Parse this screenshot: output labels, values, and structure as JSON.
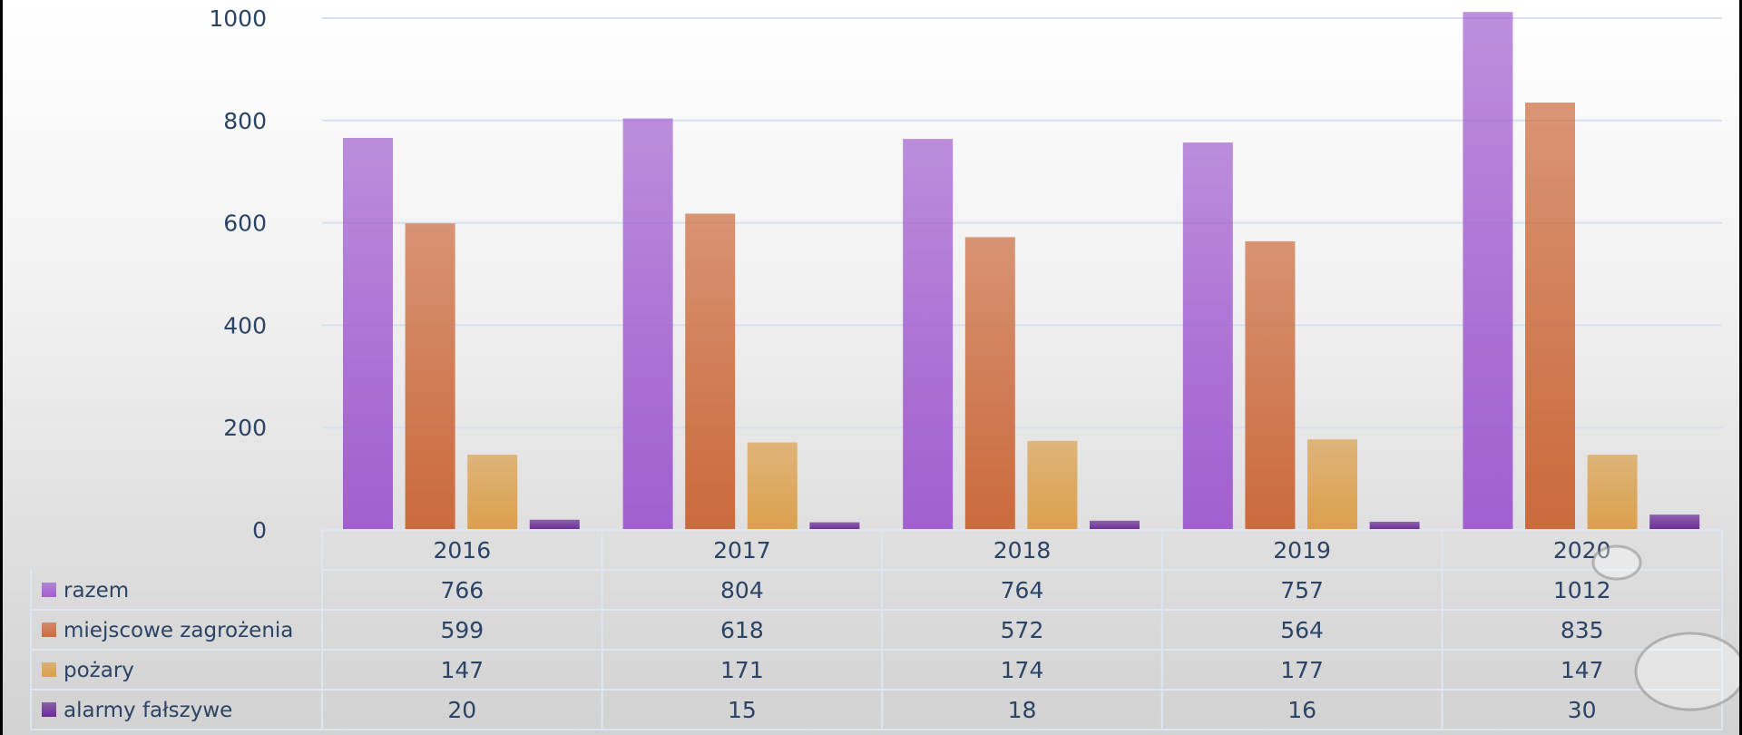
{
  "chart_data": {
    "type": "bar",
    "categories": [
      "2016",
      "2017",
      "2018",
      "2019",
      "2020"
    ],
    "series": [
      {
        "name": "razem",
        "values": [
          766,
          804,
          764,
          757,
          1012
        ],
        "color": "#a25fd0"
      },
      {
        "name": "miejscowe zagrożenia",
        "values": [
          599,
          618,
          572,
          564,
          835
        ],
        "color": "#cc6a3c"
      },
      {
        "name": "pożary",
        "values": [
          147,
          171,
          174,
          177,
          147
        ],
        "color": "#dca04c"
      },
      {
        "name": "alarmy fałszywe",
        "values": [
          20,
          15,
          18,
          16,
          30
        ],
        "color": "#6a2c96"
      }
    ],
    "yticks": [
      "0",
      "200",
      "400",
      "600",
      "800",
      "1000"
    ],
    "ylim": [
      0,
      1000
    ],
    "grid": true,
    "legend": "data-table-below"
  }
}
